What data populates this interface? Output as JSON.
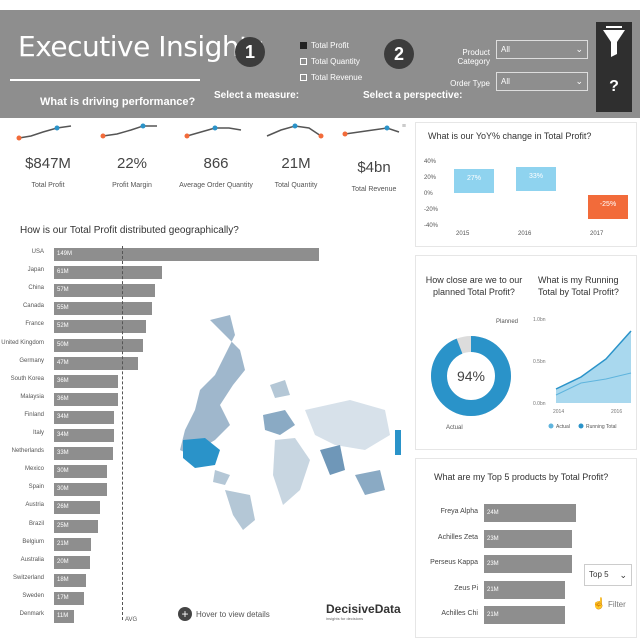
{
  "header": {
    "title": "Executive Insights",
    "subtitle": "What is driving performance?",
    "step1": "1",
    "step1_label": "Select a measure:",
    "step2": "2",
    "step2_label": "Select a perspective:",
    "measures": [
      {
        "label": "Total Profit",
        "selected": true
      },
      {
        "label": "Total Quantity",
        "selected": false
      },
      {
        "label": "Total Revenue",
        "selected": false
      }
    ],
    "product_category_label": "Product Category",
    "product_category_value": "All",
    "order_type_label": "Order Type",
    "order_type_value": "All",
    "help_symbol": "?"
  },
  "kpis": [
    {
      "value": "$847M",
      "label": "Total Profit"
    },
    {
      "value": "22%",
      "label": "Profit Margin"
    },
    {
      "value": "866",
      "label": "Average Order Quantity"
    },
    {
      "value": "21M",
      "label": "Total Quantity"
    },
    {
      "value": "$4bn",
      "label": "Total Revenue"
    }
  ],
  "geo": {
    "title": "How is our Total Profit distributed geographically?",
    "avg_label": "AVG",
    "hover_hint": "Hover to view details",
    "rows": [
      {
        "country": "USA",
        "value": "149M",
        "num": 149
      },
      {
        "country": "Japan",
        "value": "61M",
        "num": 61
      },
      {
        "country": "China",
        "value": "57M",
        "num": 57
      },
      {
        "country": "Canada",
        "value": "55M",
        "num": 55
      },
      {
        "country": "France",
        "value": "52M",
        "num": 52
      },
      {
        "country": "United Kingdom",
        "value": "50M",
        "num": 50
      },
      {
        "country": "Germany",
        "value": "47M",
        "num": 47
      },
      {
        "country": "South Korea",
        "value": "36M",
        "num": 36
      },
      {
        "country": "Malaysia",
        "value": "36M",
        "num": 36
      },
      {
        "country": "Finland",
        "value": "34M",
        "num": 34
      },
      {
        "country": "Italy",
        "value": "34M",
        "num": 34
      },
      {
        "country": "Netherlands",
        "value": "33M",
        "num": 33
      },
      {
        "country": "Mexico",
        "value": "30M",
        "num": 30
      },
      {
        "country": "Spain",
        "value": "30M",
        "num": 30
      },
      {
        "country": "Austria",
        "value": "26M",
        "num": 26
      },
      {
        "country": "Brazil",
        "value": "25M",
        "num": 25
      },
      {
        "country": "Belgium",
        "value": "21M",
        "num": 21
      },
      {
        "country": "Australia",
        "value": "20M",
        "num": 20
      },
      {
        "country": "Switzerland",
        "value": "18M",
        "num": 18
      },
      {
        "country": "Sweden",
        "value": "17M",
        "num": 17
      },
      {
        "country": "Denmark",
        "value": "11M",
        "num": 11
      }
    ]
  },
  "yoy": {
    "title": "What is our YoY% change in Total Profit?",
    "y_ticks": [
      "40%",
      "20%",
      "0%",
      "-20%",
      "-40%"
    ],
    "bars": [
      {
        "year": "2015",
        "value": "27%",
        "num": 27
      },
      {
        "year": "2016",
        "value": "33%",
        "num": 33
      },
      {
        "year": "2017",
        "value": "-25%",
        "num": -25
      }
    ],
    "positive_color": "#8fd3ef",
    "negative_color": "#f26b3a"
  },
  "planned": {
    "title": "How close are we to our planned Total Profit?",
    "percent": "94%",
    "fraction": 0.94,
    "planned_label": "Planned",
    "actual_label": "Actual",
    "color": "#2a93c9"
  },
  "running": {
    "title": "What is my Running Total by Total Profit?",
    "y_ticks": [
      "1.0bn",
      "0.5bn",
      "0.0bn"
    ],
    "x_ticks": [
      "2014",
      "2016"
    ],
    "legend": [
      {
        "label": "Actual"
      },
      {
        "label": "Running Total"
      }
    ]
  },
  "top5": {
    "title": "What are my Top 5 products by Total Profit?",
    "rows": [
      {
        "product": "Freya Alpha",
        "value": "24M",
        "num": 24
      },
      {
        "product": "Achilles Zeta",
        "value": "23M",
        "num": 23
      },
      {
        "product": "Perseus Kappa",
        "value": "23M",
        "num": 23
      },
      {
        "product": "Zeus Pi",
        "value": "21M",
        "num": 21
      },
      {
        "product": "Achilles Chi",
        "value": "21M",
        "num": 21
      }
    ],
    "select_value": "Top 5",
    "filter_label": "Filter"
  },
  "brand": {
    "name": "DecisiveData",
    "tagline": "insights for decisions"
  }
}
